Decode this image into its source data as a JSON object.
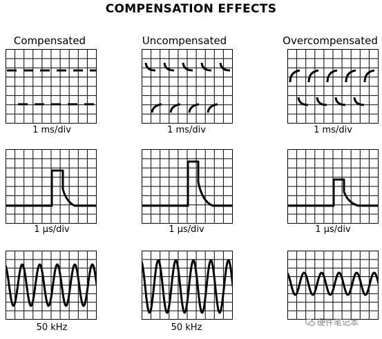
{
  "title": "COMPENSATION EFFECTS",
  "columns": [
    {
      "heading": "Compensated"
    },
    {
      "heading": "Uncompensated"
    },
    {
      "heading": "Overcompensated"
    }
  ],
  "rows": [
    {
      "caption": "1 ms/div",
      "kind": "square"
    },
    {
      "caption": "1 µs/div",
      "kind": "pulse"
    },
    {
      "caption": "50 kHz",
      "kind": "sine"
    }
  ],
  "watermark": "硬件笔记本",
  "colors": {
    "trace": "#000000",
    "grid": "#000000",
    "background": "#ffffff"
  },
  "icons": {
    "watermark_logo": "wechat-logo-icon"
  }
}
